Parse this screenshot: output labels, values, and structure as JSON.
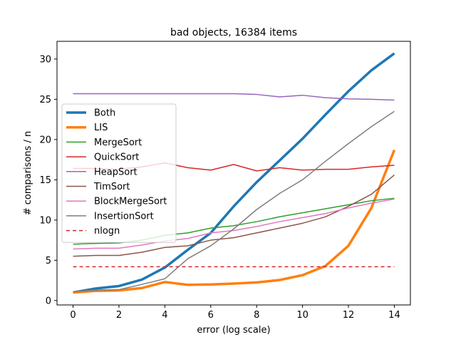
{
  "chart_data": {
    "type": "line",
    "title": "bad objects, 16384 items",
    "xlabel": "error (log scale)",
    "ylabel": "# comparisons / n",
    "xlim": [
      -0.7,
      14.7
    ],
    "ylim": [
      -0.55,
      32.2
    ],
    "xticks": [
      0,
      2,
      4,
      6,
      8,
      10,
      12,
      14
    ],
    "yticks": [
      0,
      5,
      10,
      15,
      20,
      25,
      30
    ],
    "grid": false,
    "legend_position": "left",
    "x": [
      0,
      1,
      2,
      3,
      4,
      5,
      6,
      7,
      8,
      9,
      10,
      11,
      12,
      13,
      14
    ],
    "series": [
      {
        "name": "Both",
        "color": "#1f77b4",
        "width": 3.5,
        "dash": "",
        "values": [
          1.0,
          1.5,
          1.8,
          2.6,
          4.1,
          6.3,
          8.4,
          11.7,
          14.7,
          17.4,
          20.1,
          23.1,
          26.0,
          28.6,
          30.7
        ]
      },
      {
        "name": "LIS",
        "color": "#ff7f0e",
        "width": 3.5,
        "dash": "",
        "values": [
          1.0,
          1.2,
          1.25,
          1.55,
          2.3,
          1.95,
          2.0,
          2.1,
          2.25,
          2.55,
          3.15,
          4.3,
          6.8,
          11.5,
          18.7
        ]
      },
      {
        "name": "MergeSort",
        "color": "#2ca02c",
        "width": 1.5,
        "dash": "",
        "values": [
          7.0,
          7.1,
          7.15,
          7.5,
          8.1,
          8.4,
          9.0,
          9.3,
          9.8,
          10.4,
          10.9,
          11.4,
          11.9,
          12.4,
          12.7
        ]
      },
      {
        "name": "QuickSort",
        "color": "#d62728",
        "width": 1.5,
        "dash": "",
        "values": [
          16.4,
          16.4,
          16.3,
          16.6,
          17.1,
          16.5,
          16.2,
          16.9,
          16.1,
          16.5,
          16.2,
          16.3,
          16.3,
          16.6,
          16.8
        ]
      },
      {
        "name": "HeapSort",
        "color": "#9467bd",
        "width": 1.5,
        "dash": "",
        "values": [
          25.7,
          25.7,
          25.7,
          25.7,
          25.7,
          25.7,
          25.7,
          25.7,
          25.6,
          25.3,
          25.5,
          25.2,
          25.05,
          25.0,
          24.9
        ]
      },
      {
        "name": "TimSort",
        "color": "#8c564b",
        "width": 1.5,
        "dash": "",
        "values": [
          5.5,
          5.6,
          5.6,
          6.0,
          6.6,
          6.8,
          7.5,
          7.8,
          8.4,
          9.0,
          9.6,
          10.4,
          11.7,
          13.2,
          15.6
        ]
      },
      {
        "name": "BlockMergeSort",
        "color": "#e377c2",
        "width": 1.5,
        "dash": "",
        "values": [
          6.4,
          6.5,
          6.5,
          6.9,
          7.4,
          7.7,
          8.4,
          8.7,
          9.2,
          9.8,
          10.3,
          10.8,
          11.5,
          12.1,
          12.6
        ]
      },
      {
        "name": "InsertionSort",
        "color": "#7f7f7f",
        "width": 1.5,
        "dash": "",
        "values": [
          1.1,
          1.3,
          1.35,
          2.0,
          2.7,
          5.2,
          6.8,
          8.9,
          11.3,
          13.3,
          15.0,
          17.3,
          19.5,
          21.6,
          23.5
        ]
      },
      {
        "name": "nlogn",
        "color": "#d62728",
        "width": 1.5,
        "dash": "5,4",
        "values": [
          4.2,
          4.2,
          4.2,
          4.2,
          4.2,
          4.2,
          4.2,
          4.2,
          4.2,
          4.2,
          4.2,
          4.2,
          4.2,
          4.2,
          4.2
        ]
      }
    ]
  }
}
